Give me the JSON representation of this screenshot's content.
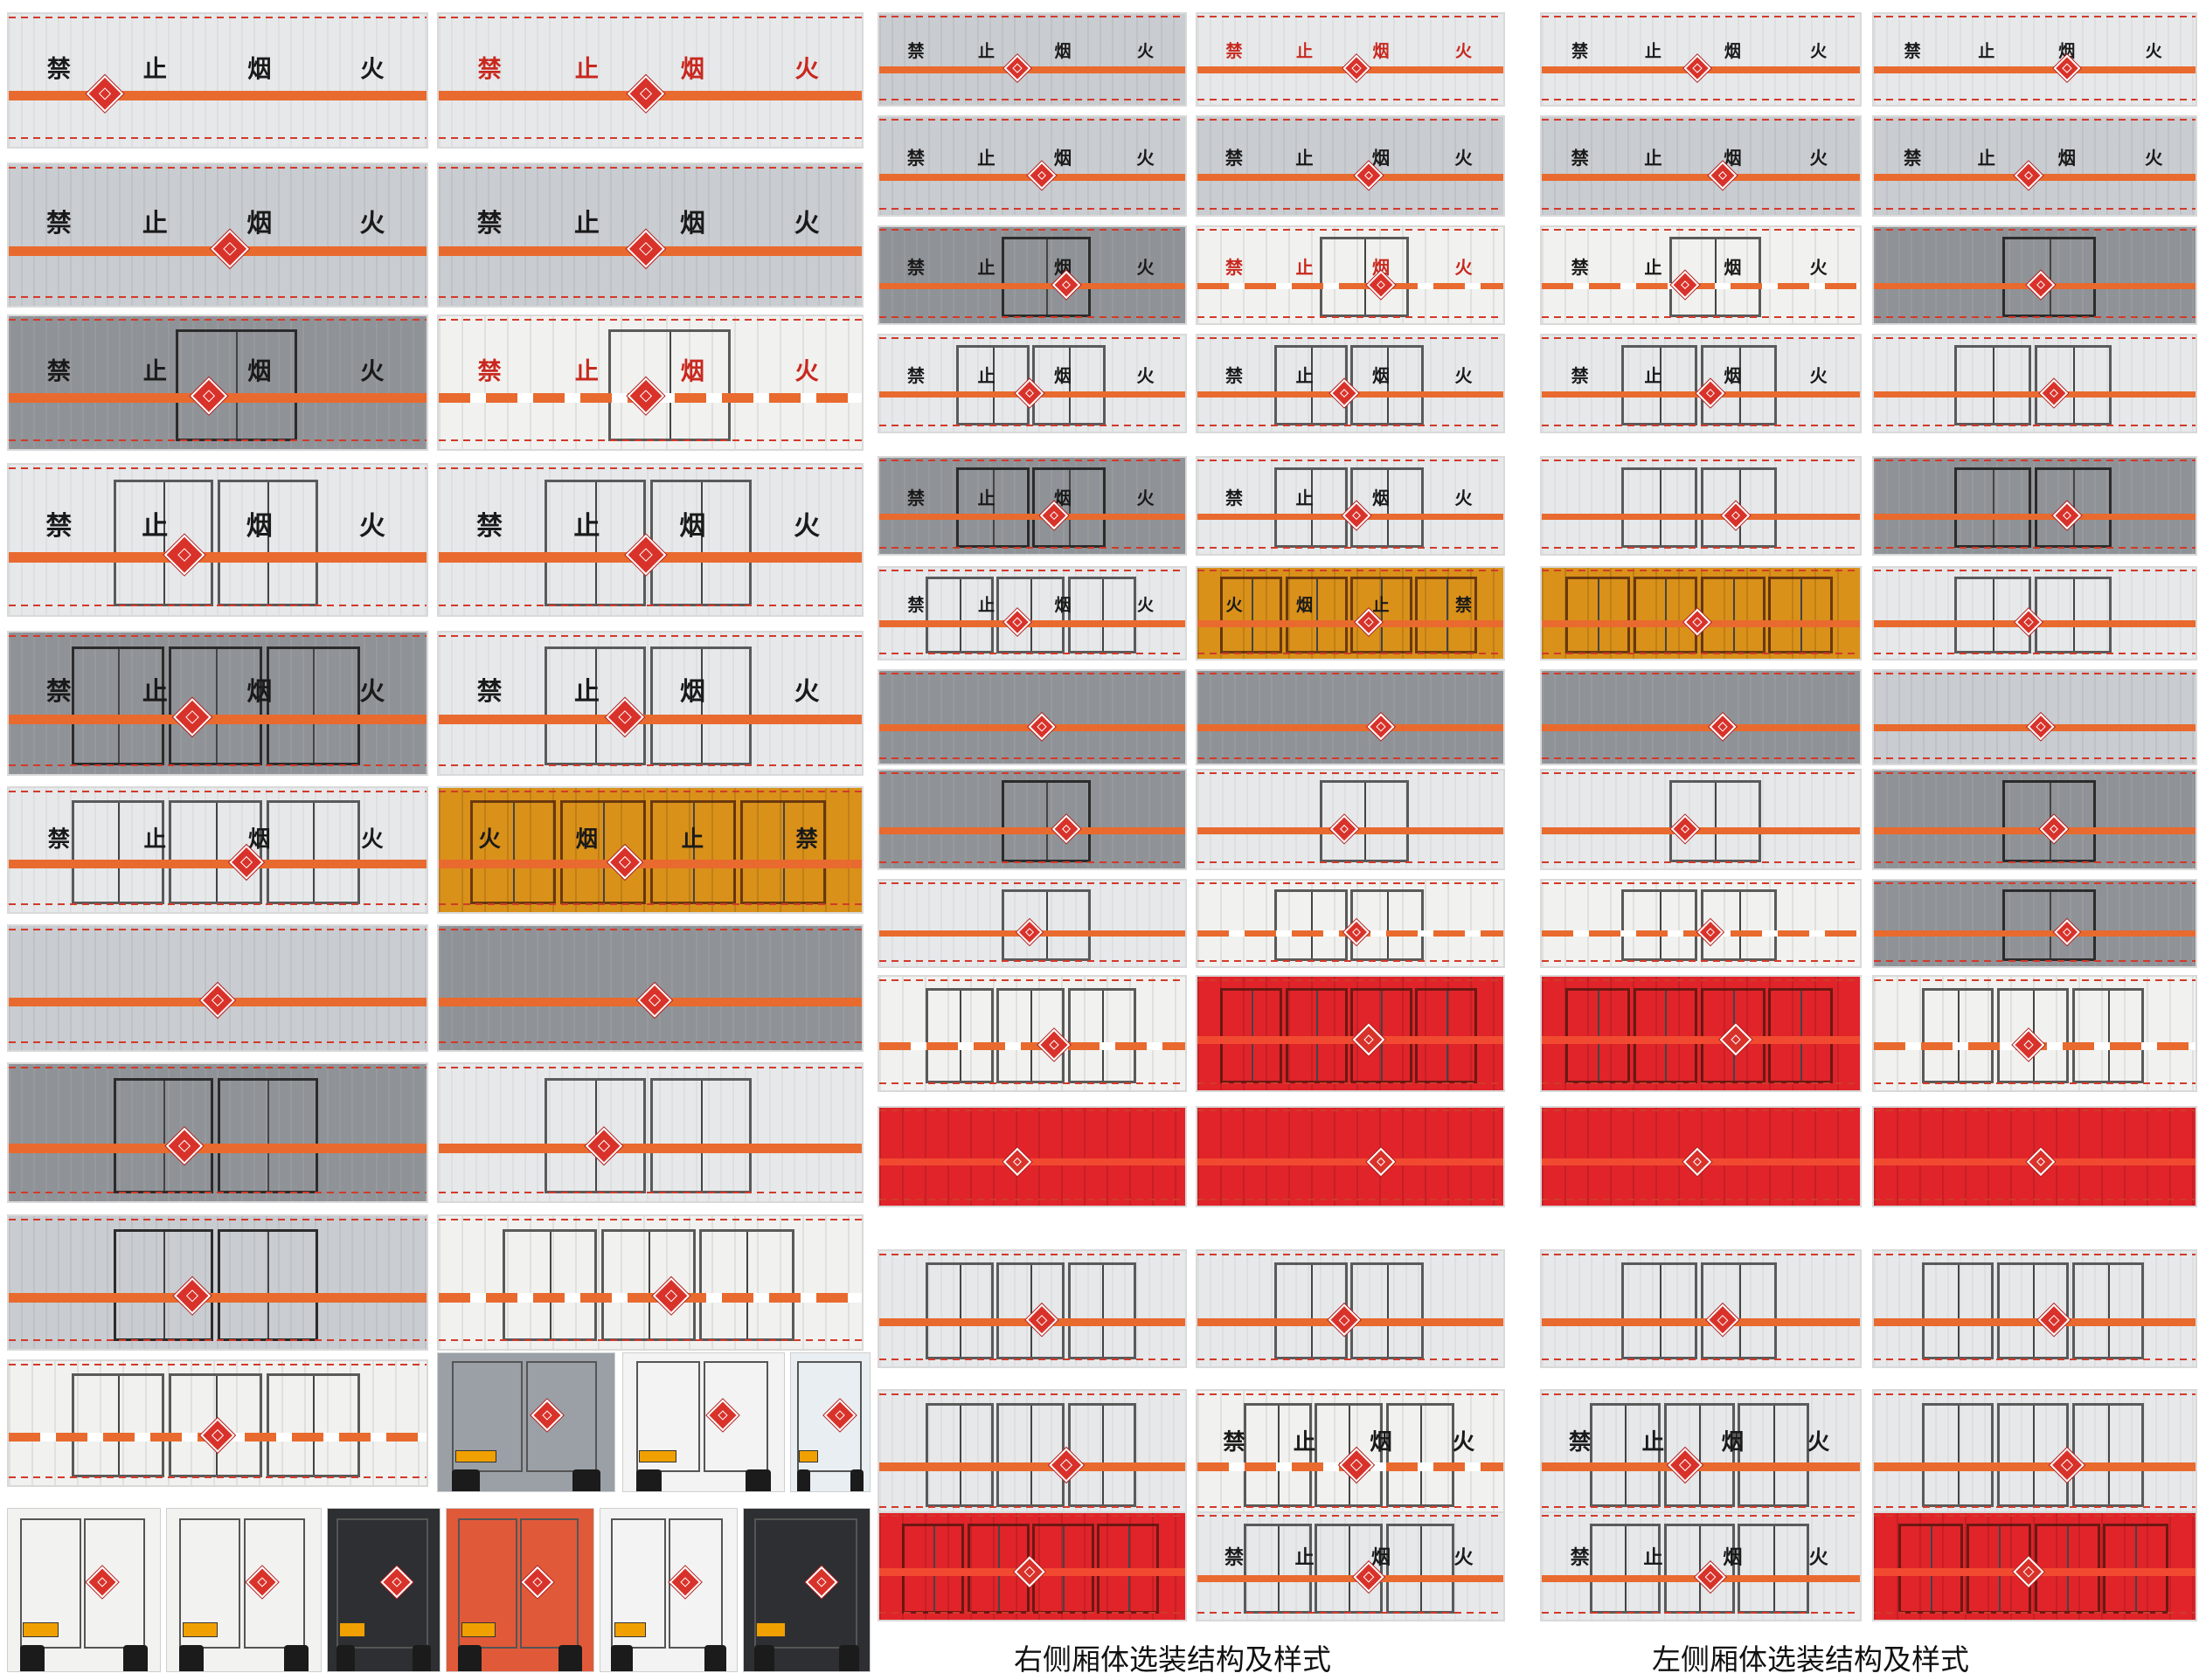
{
  "colors": {
    "orange_stripe": "#e96a2e",
    "hazard_red": "#d8322a",
    "silver": "#c9ccd0",
    "light_silver": "#e6e8ea",
    "dark_silver": "#8f9296",
    "white_box": "#f1f1ef",
    "amber_box": "#d9911a",
    "red_box": "#e0242a",
    "text_black": "#1a1a1a",
    "text_red": "#c8281e"
  },
  "signs": {
    "no_smoking": [
      "禁",
      "止",
      "烟",
      "火"
    ],
    "no_smoking_reversed": [
      "火",
      "烟",
      "止",
      "禁"
    ]
  },
  "captions": {
    "right_side": "右侧厢体选装结构及样式",
    "left_side": "左侧厢体选装结构及样式"
  },
  "hazard_icon": "flammable-diamond-icon"
}
